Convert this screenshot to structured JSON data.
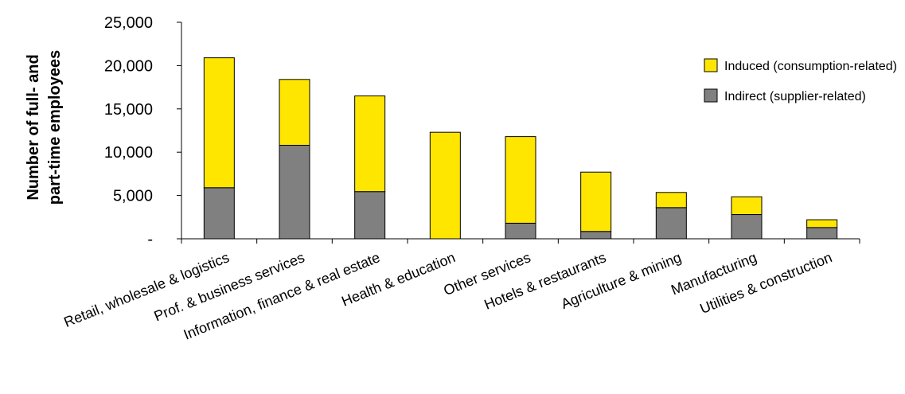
{
  "chart_data": {
    "type": "bar",
    "stacked": true,
    "title": "",
    "xlabel": "",
    "ylabel": [
      "Number of full- and",
      "part-time employees"
    ],
    "ylim": [
      0,
      25000
    ],
    "yticks": [
      0,
      5000,
      10000,
      15000,
      20000,
      25000
    ],
    "ytick_labels": [
      "-",
      "5,000",
      "10,000",
      "15,000",
      "20,000",
      "25,000"
    ],
    "grid": false,
    "legend_position": "top-right",
    "categories": [
      "Retail, wholesale & logistics",
      "Prof. & business services",
      "Information, finance & real estate",
      "Health & education",
      "Other services",
      "Hotels & restaurants",
      "Agriculture & mining",
      "Manufacturing",
      "Utilities & construction"
    ],
    "series": [
      {
        "name": "Indirect (supplier-related)",
        "color": "#808080",
        "values": [
          5900,
          10800,
          5450,
          0,
          1800,
          850,
          3600,
          2800,
          1300
        ]
      },
      {
        "name": "Induced (consumption-related)",
        "color": "#ffe600",
        "values": [
          15000,
          7600,
          11050,
          12300,
          10000,
          6850,
          1750,
          2050,
          900
        ]
      }
    ]
  }
}
